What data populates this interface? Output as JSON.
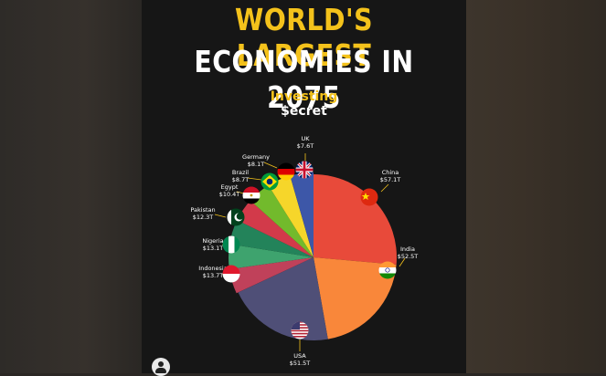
{
  "title_line1": "WORLD'S LARGEST",
  "title_line2": "ECONOMIES IN 2075",
  "logo_line1": "Investing",
  "logo_line2": "$ecret",
  "chart_data": {
    "type": "pie",
    "title": "WORLD'S LARGEST ECONOMIES IN 2075",
    "unit": "$ trillion",
    "slices": [
      {
        "name": "China",
        "label": "$57.1T",
        "value": 57.1,
        "color": "#e84a3a"
      },
      {
        "name": "India",
        "label": "$52.5T",
        "value": 52.5,
        "color": "#f9873a"
      },
      {
        "name": "USA",
        "label": "$51.5T",
        "value": 51.5,
        "color": "#4f4f77"
      },
      {
        "name": "Indonesia",
        "label": "$13.7T",
        "value": 13.7,
        "color": "#c0415a"
      },
      {
        "name": "Nigeria",
        "label": "$13.1T",
        "value": 13.1,
        "color": "#3ea36e"
      },
      {
        "name": "Pakistan",
        "label": "$12.3T",
        "value": 12.3,
        "color": "#23835a"
      },
      {
        "name": "Egypt",
        "label": "$10.4T",
        "value": 10.4,
        "color": "#d23a4a"
      },
      {
        "name": "Brazil",
        "label": "$8.7T",
        "value": 8.7,
        "color": "#72ba2c"
      },
      {
        "name": "Germany",
        "label": "$8.1T",
        "value": 8.1,
        "color": "#f6d62a"
      },
      {
        "name": "UK",
        "label": "$7.6T",
        "value": 7.6,
        "color": "#3d57a8"
      }
    ],
    "flags": [
      "china-flag-icon",
      "india-flag-icon",
      "usa-flag-icon",
      "indonesia-flag-icon",
      "nigeria-flag-icon",
      "pakistan-flag-icon",
      "egypt-flag-icon",
      "brazil-flag-icon",
      "germany-flag-icon",
      "uk-flag-icon"
    ]
  },
  "profile_icon": "user-icon"
}
